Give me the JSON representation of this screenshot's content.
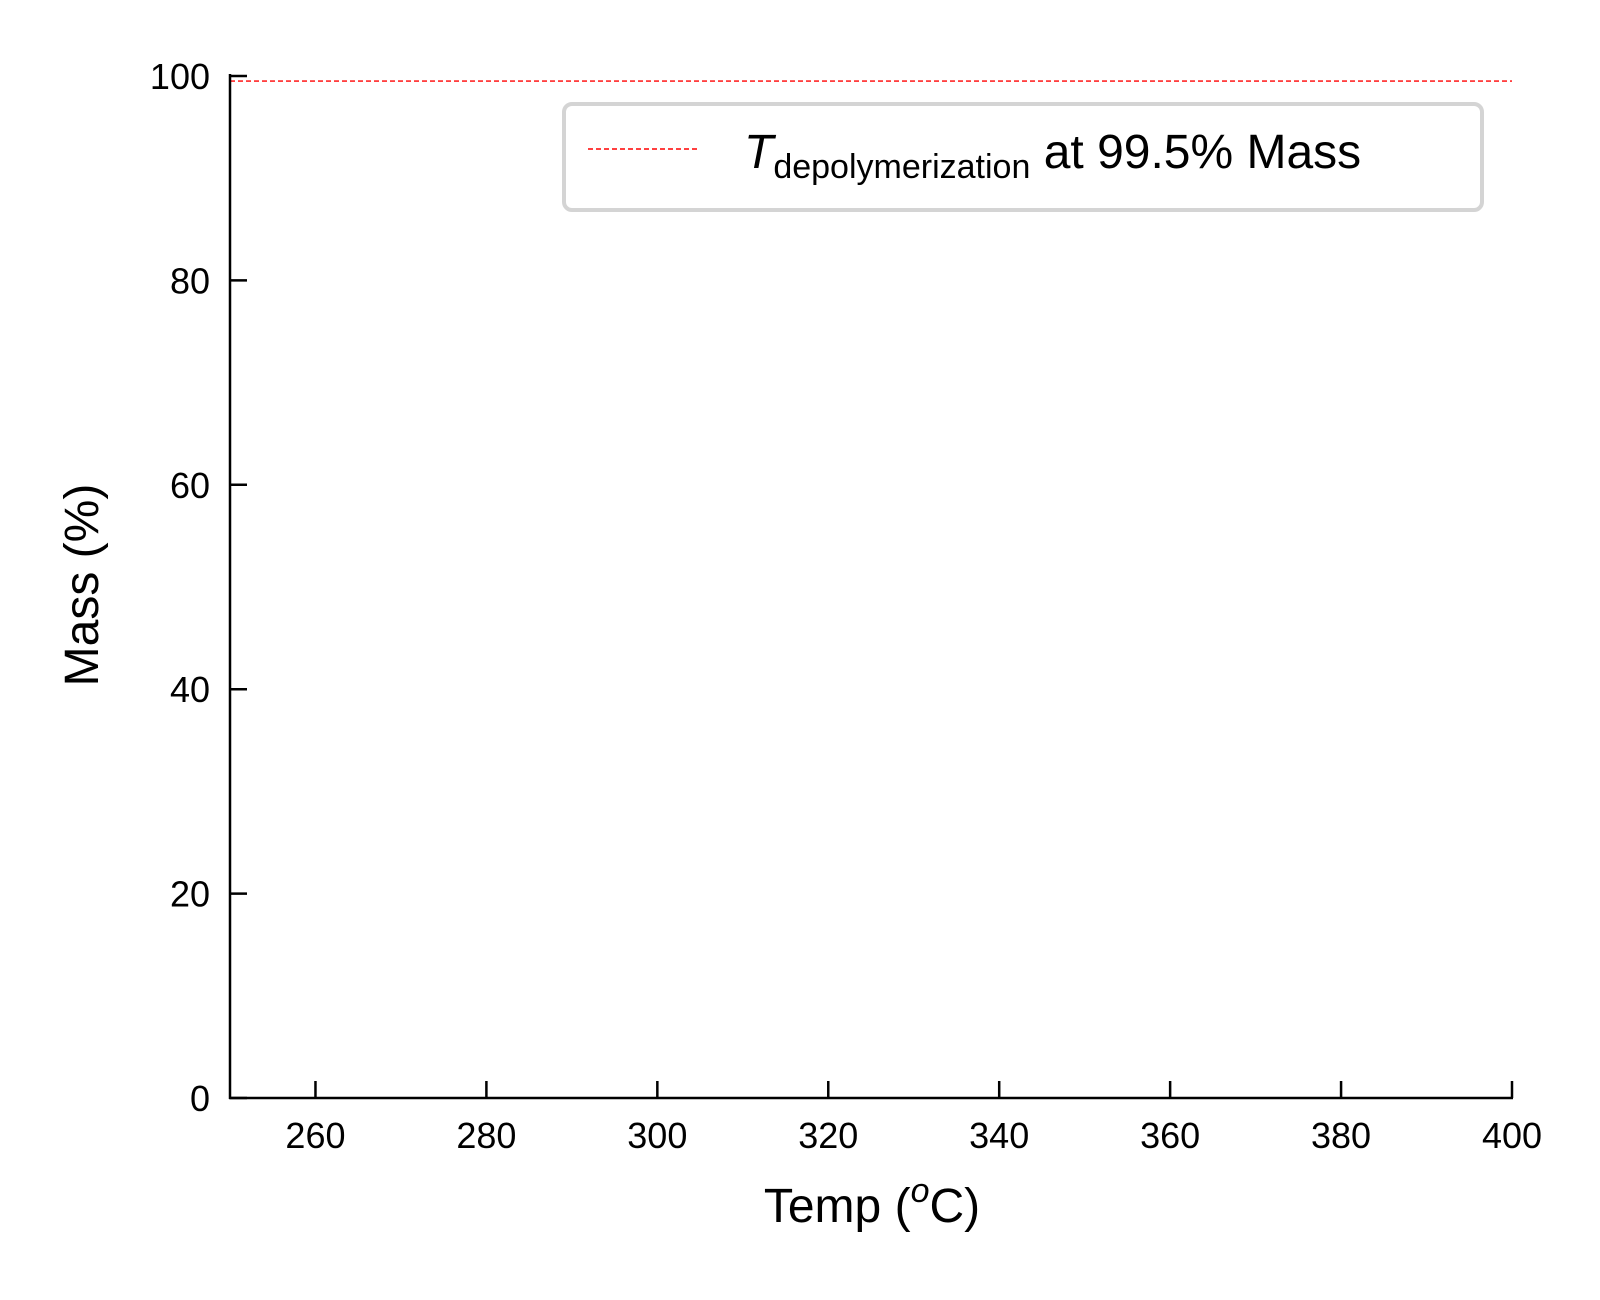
{
  "chart_data": {
    "type": "line",
    "title": "",
    "xlabel": {
      "main": "Temp (",
      "superscript": "o",
      "tail": "C)"
    },
    "ylabel": "Mass (%)",
    "xlim": [
      250,
      400
    ],
    "ylim": [
      0,
      100
    ],
    "xticks": [
      260,
      280,
      300,
      320,
      340,
      360,
      380,
      400
    ],
    "yticks": [
      0,
      20,
      40,
      60,
      80,
      100
    ],
    "grid": false,
    "legend_position": "top-right",
    "series": [
      {
        "name": {
          "symbol": "T",
          "subscript": "depolymerization",
          "suffix": " at 99.5% Mass"
        },
        "kind": "horizontal-line",
        "y": 99.5,
        "x": [
          250,
          400
        ],
        "color": "#ff0000",
        "style": "dashed"
      }
    ]
  }
}
